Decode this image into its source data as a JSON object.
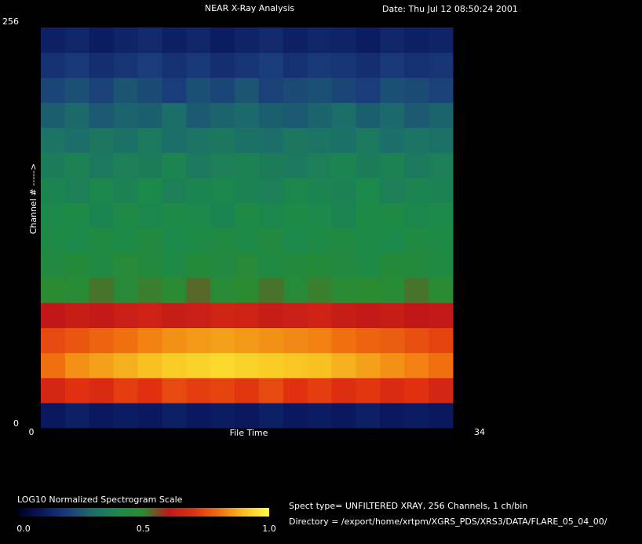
{
  "chart_data": {
    "type": "heatmap",
    "title": "NEAR X-Ray Analysis",
    "subtitle": "Date: Thu Jul 12 08:50:24 2001",
    "x_label": "File Time",
    "y_label": "Channel # ----->",
    "xlim": [
      0,
      34
    ],
    "xticks": [
      0,
      34
    ],
    "ylim": [
      0,
      256
    ],
    "yticks": [
      0,
      256
    ],
    "xbins": [
      0,
      2,
      4,
      6,
      8,
      10,
      12,
      14,
      16,
      18,
      20,
      22,
      24,
      26,
      28,
      30,
      32,
      34
    ],
    "ybins": [
      0,
      16,
      32,
      48,
      64,
      80,
      96,
      112,
      128,
      144,
      160,
      176,
      192,
      208,
      224,
      240,
      256
    ],
    "z": [
      [
        0.1,
        0.12,
        0.1,
        0.11,
        0.1,
        0.12,
        0.1,
        0.11,
        0.1,
        0.12,
        0.1,
        0.11,
        0.1,
        0.12,
        0.1,
        0.11,
        0.1
      ],
      [
        0.66,
        0.7,
        0.68,
        0.72,
        0.7,
        0.74,
        0.72,
        0.73,
        0.71,
        0.74,
        0.7,
        0.72,
        0.69,
        0.71,
        0.68,
        0.7,
        0.66
      ],
      [
        0.8,
        0.84,
        0.86,
        0.88,
        0.9,
        0.92,
        0.93,
        0.94,
        0.93,
        0.92,
        0.91,
        0.9,
        0.88,
        0.86,
        0.84,
        0.82,
        0.8
      ],
      [
        0.74,
        0.76,
        0.78,
        0.8,
        0.82,
        0.84,
        0.85,
        0.86,
        0.85,
        0.84,
        0.83,
        0.82,
        0.8,
        0.78,
        0.77,
        0.75,
        0.73
      ],
      [
        0.6,
        0.62,
        0.61,
        0.63,
        0.64,
        0.62,
        0.63,
        0.65,
        0.64,
        0.62,
        0.63,
        0.64,
        0.62,
        0.61,
        0.62,
        0.6,
        0.61
      ],
      [
        0.5,
        0.48,
        0.52,
        0.47,
        0.51,
        0.49,
        0.53,
        0.48,
        0.5,
        0.52,
        0.47,
        0.51,
        0.49,
        0.5,
        0.48,
        0.52,
        0.49
      ],
      [
        0.44,
        0.46,
        0.43,
        0.47,
        0.45,
        0.42,
        0.46,
        0.44,
        0.47,
        0.43,
        0.45,
        0.46,
        0.44,
        0.42,
        0.46,
        0.45,
        0.43
      ],
      [
        0.42,
        0.4,
        0.43,
        0.41,
        0.44,
        0.4,
        0.42,
        0.43,
        0.41,
        0.44,
        0.4,
        0.42,
        0.43,
        0.41,
        0.4,
        0.43,
        0.42
      ],
      [
        0.4,
        0.41,
        0.38,
        0.42,
        0.39,
        0.41,
        0.4,
        0.38,
        0.42,
        0.39,
        0.41,
        0.4,
        0.38,
        0.41,
        0.42,
        0.39,
        0.4
      ],
      [
        0.38,
        0.36,
        0.39,
        0.37,
        0.4,
        0.36,
        0.38,
        0.39,
        0.37,
        0.36,
        0.39,
        0.38,
        0.37,
        0.4,
        0.36,
        0.38,
        0.37
      ],
      [
        0.35,
        0.37,
        0.34,
        0.36,
        0.35,
        0.38,
        0.34,
        0.36,
        0.37,
        0.35,
        0.34,
        0.36,
        0.38,
        0.35,
        0.37,
        0.34,
        0.36
      ],
      [
        0.32,
        0.3,
        0.33,
        0.31,
        0.34,
        0.3,
        0.32,
        0.33,
        0.31,
        0.3,
        0.33,
        0.32,
        0.31,
        0.34,
        0.3,
        0.32,
        0.31
      ],
      [
        0.27,
        0.29,
        0.26,
        0.28,
        0.27,
        0.3,
        0.26,
        0.28,
        0.29,
        0.27,
        0.26,
        0.28,
        0.3,
        0.27,
        0.29,
        0.26,
        0.28
      ],
      [
        0.22,
        0.24,
        0.21,
        0.25,
        0.23,
        0.2,
        0.24,
        0.22,
        0.25,
        0.21,
        0.23,
        0.24,
        0.22,
        0.2,
        0.24,
        0.23,
        0.21
      ],
      [
        0.17,
        0.19,
        0.16,
        0.18,
        0.2,
        0.17,
        0.19,
        0.16,
        0.18,
        0.2,
        0.17,
        0.19,
        0.18,
        0.16,
        0.19,
        0.17,
        0.18
      ],
      [
        0.12,
        0.14,
        0.11,
        0.13,
        0.15,
        0.12,
        0.14,
        0.11,
        0.13,
        0.15,
        0.12,
        0.14,
        0.13,
        0.11,
        0.14,
        0.12,
        0.13
      ]
    ],
    "colormap": [
      "#000020",
      "#0a1860",
      "#1a3c7a",
      "#1c6e6a",
      "#1c8a4a",
      "#2a8a30",
      "#c01818",
      "#e03010",
      "#f07010",
      "#f8c020",
      "#ffff40"
    ],
    "colorbar_title": "LOG10 Normalized Spectrogram Scale",
    "colorbar_lim": [
      0,
      1
    ],
    "colorbar_ticks": [
      {
        "value": 0,
        "label": "0.0"
      },
      0.5,
      {
        "value": 1,
        "label": "1.0"
      }
    ],
    "info_lines": [
      "Spect type= UNFILTERED XRAY,  256 Channels,  1 ch/bin",
      "Directory = /export/home/xrtpm/XGRS_PDS/XRS3/DATA/FLARE_05_04_00/"
    ]
  }
}
